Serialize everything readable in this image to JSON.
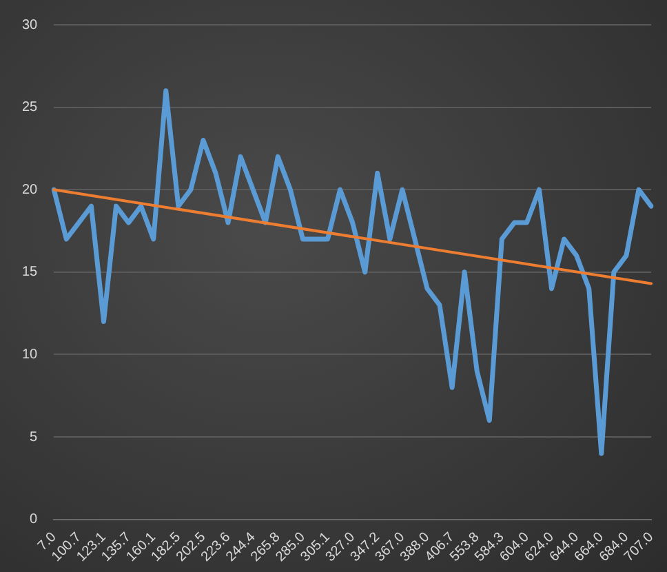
{
  "chart_data": {
    "type": "line",
    "categories": [
      "7.0",
      null,
      "100.7",
      null,
      "123.1",
      null,
      "135.7",
      null,
      "160.1",
      null,
      "182.5",
      null,
      "202.5",
      null,
      "223.6",
      null,
      "244.4",
      null,
      "265.8",
      null,
      "285.0",
      null,
      "305.1",
      null,
      "327.0",
      null,
      "347.2",
      null,
      "367.0",
      null,
      "388.0",
      null,
      "406.7",
      null,
      "553.8",
      null,
      "584.3",
      null,
      "604.0",
      null,
      "624.0",
      null,
      "644.0",
      null,
      "664.0",
      null,
      "684.0",
      null,
      "707.0"
    ],
    "series": [
      {
        "color": "#5b9bd5",
        "values": [
          20,
          17,
          18,
          19,
          12,
          19,
          18,
          19,
          17,
          26,
          19,
          20,
          23,
          21,
          18,
          22,
          20,
          18,
          22,
          20,
          17,
          17,
          17,
          20,
          18,
          15,
          21,
          17,
          20,
          17,
          14,
          13,
          8,
          15,
          9,
          6,
          17,
          18,
          18,
          20,
          14,
          17,
          16,
          14,
          4,
          15,
          16,
          20,
          19
        ]
      },
      {
        "type": "line",
        "color": "#ed7d31",
        "x": [
          "7.0",
          "707.0"
        ],
        "values": [
          20,
          14.3
        ]
      }
    ],
    "ylim": [
      0,
      30
    ],
    "yticks": [
      0,
      5,
      10,
      15,
      20,
      25,
      30
    ],
    "grid": "y",
    "legend": false,
    "marker": "none",
    "line_style": "solid"
  }
}
